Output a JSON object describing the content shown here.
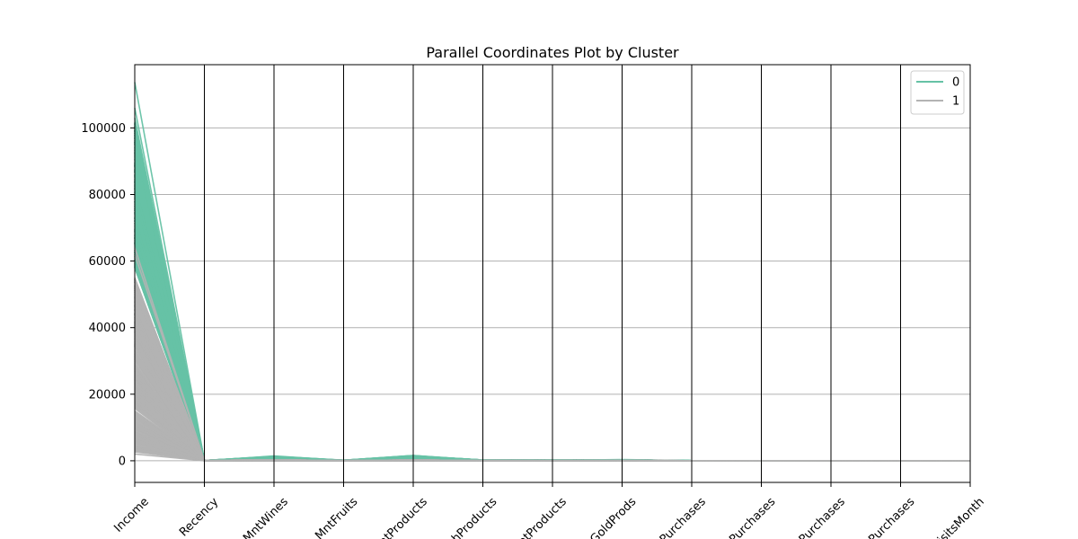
{
  "chart_data": {
    "type": "parallel_coordinates",
    "title": "Parallel Coordinates Plot by Cluster",
    "axes": [
      "Income",
      "Recency",
      "MntWines",
      "MntFruits",
      "MntMeatProducts",
      "MntFishProducts",
      "MntSweetProducts",
      "MntGoldProds",
      "NumDealsPurchases",
      "NumWebPurchases",
      "NumCatalogPurchases",
      "NumStorePurchases",
      "NumWebVisitsMonth"
    ],
    "visible_xtick_labels": [
      "Income",
      "Recency",
      "MntWines",
      "MntFruits",
      "atProducts",
      "chProducts",
      "etProducts",
      "tGoldProds",
      "Purchases",
      "Purchases",
      "Purchases",
      "Purchases",
      "isitsMonth"
    ],
    "ylim": [
      -6500,
      119000
    ],
    "yticks": [
      0,
      20000,
      40000,
      60000,
      80000,
      100000
    ],
    "ytick_labels": [
      "0",
      "20000",
      "40000",
      "60000",
      "80000",
      "100000"
    ],
    "grid": true,
    "legend": {
      "placement": "top-right",
      "entries": [
        "0",
        "1"
      ]
    },
    "series": [
      {
        "name": "0",
        "color": "#66c2a5",
        "income_range": [
          1730,
          113734
        ],
        "recency_range": [
          0,
          99
        ],
        "mnt_wines_max": 1493,
        "mnt_fruits_max": 199,
        "mnt_meat_max": 1725,
        "mnt_fish_max": 259,
        "mnt_sweet_max": 263,
        "mnt_gold_max": 362,
        "purchase_counts_max": 28
      },
      {
        "name": "1",
        "color": "#b3b3b3",
        "income_range": [
          1730,
          64000
        ],
        "recency_range": [
          0,
          99
        ],
        "mnt_wines_max": 500,
        "mnt_fruits_max": 80,
        "mnt_meat_max": 400,
        "mnt_fish_max": 100,
        "mnt_sweet_max": 80,
        "mnt_gold_max": 150,
        "purchase_counts_max": 20
      }
    ]
  }
}
